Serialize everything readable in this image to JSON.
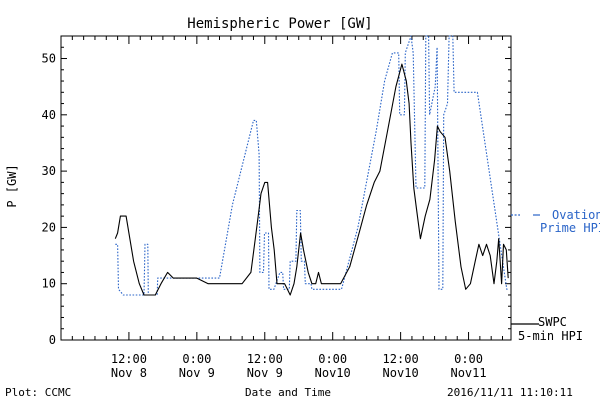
{
  "chart_data": {
    "type": "line",
    "title": "Hemispheric Power [GW]",
    "ylabel": "P [GW]",
    "xlabel": "Date and Time",
    "ylim": [
      0,
      54
    ],
    "yticks": [
      0,
      10,
      20,
      30,
      40,
      50
    ],
    "xlim": [
      1478563200,
      1478849400
    ],
    "xticks": [
      {
        "t": 1478606400,
        "line1": "12:00",
        "line2": "Nov 8"
      },
      {
        "t": 1478649600,
        "line1": "0:00",
        "line2": "Nov 9"
      },
      {
        "t": 1478692800,
        "line1": "12:00",
        "line2": "Nov 9"
      },
      {
        "t": 1478736000,
        "line1": "0:00",
        "line2": "Nov10"
      },
      {
        "t": 1478779200,
        "line1": "12:00",
        "line2": "Nov10"
      },
      {
        "t": 1478822400,
        "line1": "0:00",
        "line2": "Nov11"
      }
    ],
    "grid": false,
    "legend_position": "right",
    "footer_left": "Plot: CCMC",
    "footer_right": "2016/11/11 11:10:11",
    "series": [
      {
        "name": "Ovation Prime HPI",
        "legend_line1": "Ovation",
        "legend_line2": "Prime HPI",
        "color": "#2a64c8",
        "style": "dotted",
        "points": [
          [
            1478597760,
            17
          ],
          [
            1478599200,
            17
          ],
          [
            1478599800,
            9
          ],
          [
            1478602800,
            8
          ],
          [
            1478616000,
            8
          ],
          [
            1478616600,
            17
          ],
          [
            1478618400,
            17
          ],
          [
            1478618700,
            8
          ],
          [
            1478624400,
            8
          ],
          [
            1478624700,
            11
          ],
          [
            1478649600,
            11
          ],
          [
            1478664000,
            11
          ],
          [
            1478672200,
            24
          ],
          [
            1478685600,
            39
          ],
          [
            1478687400,
            39
          ],
          [
            1478689200,
            33
          ],
          [
            1478689700,
            12
          ],
          [
            1478692000,
            12
          ],
          [
            1478692600,
            19
          ],
          [
            1478695200,
            19
          ],
          [
            1478695500,
            9
          ],
          [
            1478698600,
            9
          ],
          [
            1478702400,
            12
          ],
          [
            1478704200,
            12
          ],
          [
            1478704800,
            9
          ],
          [
            1478708400,
            9
          ],
          [
            1478709000,
            14
          ],
          [
            1478712600,
            14
          ],
          [
            1478713200,
            23
          ],
          [
            1478715400,
            23
          ],
          [
            1478716000,
            14
          ],
          [
            1478718000,
            14
          ],
          [
            1478718600,
            10
          ],
          [
            1478722200,
            10
          ],
          [
            1478722800,
            9
          ],
          [
            1478741600,
            9
          ],
          [
            1478752000,
            20
          ],
          [
            1478763600,
            37
          ],
          [
            1478769000,
            46
          ],
          [
            1478774000,
            51
          ],
          [
            1478778000,
            51
          ],
          [
            1478778600,
            40
          ],
          [
            1478781600,
            40
          ],
          [
            1478782200,
            51
          ],
          [
            1478785800,
            54
          ],
          [
            1478787200,
            51
          ],
          [
            1478789000,
            27
          ],
          [
            1478794600,
            27
          ],
          [
            1478795200,
            54
          ],
          [
            1478797000,
            54
          ],
          [
            1478797600,
            40
          ],
          [
            1478801200,
            45
          ],
          [
            1478802400,
            52
          ],
          [
            1478803600,
            9
          ],
          [
            1478806000,
            9
          ],
          [
            1478806600,
            40
          ],
          [
            1478809000,
            42
          ],
          [
            1478810000,
            54
          ],
          [
            1478812400,
            54
          ],
          [
            1478813200,
            44
          ],
          [
            1478828000,
            44
          ],
          [
            1478846700,
            9
          ],
          [
            1478847600,
            9
          ]
        ]
      },
      {
        "name": "SWPC 5-min HPI",
        "legend_line1": "SWPC",
        "legend_line2": "5-min HPI",
        "color": "#000000",
        "style": "solid",
        "points": [
          [
            1478597760,
            18
          ],
          [
            1478599200,
            19
          ],
          [
            1478601000,
            22
          ],
          [
            1478604600,
            22
          ],
          [
            1478606400,
            19
          ],
          [
            1478609400,
            14
          ],
          [
            1478613000,
            10
          ],
          [
            1478616000,
            8
          ],
          [
            1478619600,
            8
          ],
          [
            1478623200,
            8
          ],
          [
            1478626800,
            10
          ],
          [
            1478631000,
            12
          ],
          [
            1478634600,
            11
          ],
          [
            1478640000,
            11
          ],
          [
            1478644800,
            11
          ],
          [
            1478649600,
            11
          ],
          [
            1478656800,
            10
          ],
          [
            1478664000,
            10
          ],
          [
            1478671200,
            10
          ],
          [
            1478678400,
            10
          ],
          [
            1478684000,
            12
          ],
          [
            1478686800,
            18
          ],
          [
            1478688600,
            22
          ],
          [
            1478690400,
            26
          ],
          [
            1478692800,
            28
          ],
          [
            1478694600,
            28
          ],
          [
            1478697000,
            20
          ],
          [
            1478698800,
            16
          ],
          [
            1478700600,
            10
          ],
          [
            1478703600,
            10
          ],
          [
            1478705400,
            10
          ],
          [
            1478707200,
            9
          ],
          [
            1478709000,
            8
          ],
          [
            1478711400,
            10
          ],
          [
            1478713200,
            13
          ],
          [
            1478715600,
            19
          ],
          [
            1478717400,
            16
          ],
          [
            1478720400,
            12
          ],
          [
            1478722800,
            10
          ],
          [
            1478725200,
            10
          ],
          [
            1478727000,
            12
          ],
          [
            1478728800,
            10
          ],
          [
            1478731200,
            10
          ],
          [
            1478736000,
            10
          ],
          [
            1478741000,
            10
          ],
          [
            1478746800,
            13
          ],
          [
            1478752800,
            19
          ],
          [
            1478757600,
            24
          ],
          [
            1478762400,
            28
          ],
          [
            1478766000,
            30
          ],
          [
            1478770800,
            37
          ],
          [
            1478776200,
            45
          ],
          [
            1478780000,
            49
          ],
          [
            1478782800,
            46
          ],
          [
            1478784600,
            42
          ],
          [
            1478785800,
            35
          ],
          [
            1478787600,
            27
          ],
          [
            1478789400,
            23
          ],
          [
            1478791800,
            18
          ],
          [
            1478794800,
            22
          ],
          [
            1478797800,
            25
          ],
          [
            1478800800,
            32
          ],
          [
            1478802600,
            38
          ],
          [
            1478804400,
            37
          ],
          [
            1478807400,
            36
          ],
          [
            1478810400,
            30
          ],
          [
            1478814000,
            21
          ],
          [
            1478817600,
            13
          ],
          [
            1478820600,
            9
          ],
          [
            1478823600,
            10
          ],
          [
            1478826600,
            14
          ],
          [
            1478829000,
            17
          ],
          [
            1478831400,
            15
          ],
          [
            1478833800,
            17
          ],
          [
            1478836200,
            15
          ],
          [
            1478838600,
            10
          ],
          [
            1478840400,
            14
          ],
          [
            1478841600,
            18
          ],
          [
            1478843400,
            10
          ],
          [
            1478844600,
            17
          ],
          [
            1478846400,
            16
          ],
          [
            1478847600,
            11
          ]
        ]
      }
    ]
  }
}
